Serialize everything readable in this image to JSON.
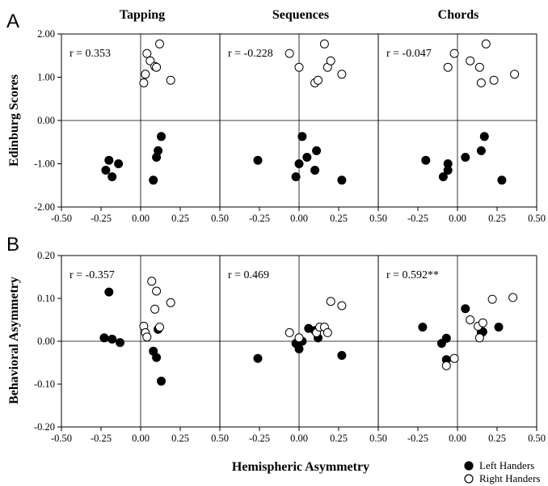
{
  "figure": {
    "column_titles": [
      "Tapping",
      "Sequences",
      "Chords"
    ],
    "panel_letters": [
      "A",
      "B"
    ],
    "ylabels": [
      "Edinburg Scores",
      "Behavioral Asymmetry"
    ],
    "xlabel": "Hemispheric Asymmetry",
    "legend": {
      "left": "Left Handers",
      "right": "Right Handers",
      "left_marker": "filled",
      "right_marker": "open"
    },
    "x_ticks": [
      "-0.50",
      "-0.25",
      "0.00",
      "0.25",
      "0.50"
    ],
    "x_tick_values": [
      -0.5,
      -0.25,
      0.0,
      0.25,
      0.5
    ],
    "rowA_y_ticks": [
      "2.00",
      "1.00",
      "0.00",
      "-1.00",
      "-2.00"
    ],
    "rowA_y_tick_values": [
      2,
      1,
      0,
      -1,
      -2
    ],
    "rowB_y_ticks": [
      "0.20",
      "0.10",
      "0.00",
      "-0.10",
      "-0.20"
    ],
    "rowB_y_tick_values": [
      0.2,
      0.1,
      0.0,
      -0.1,
      -0.2
    ],
    "colors": {
      "marker_fill_left": "#000000",
      "marker_fill_right": "#ffffff",
      "stroke": "#000000"
    }
  },
  "chart_data": [
    {
      "type": "scatter",
      "panel": "A-Tapping",
      "r": "r = 0.353",
      "xlim": [
        -0.5,
        0.5
      ],
      "ylim": [
        -2,
        2
      ],
      "series": [
        {
          "name": "Left Handers",
          "x": [
            -0.22,
            -0.2,
            -0.18,
            -0.14,
            0.08,
            0.1,
            0.11,
            0.13
          ],
          "y": [
            -1.15,
            -0.92,
            -1.3,
            -1.0,
            -1.38,
            -0.85,
            -0.7,
            -0.37
          ]
        },
        {
          "name": "Right Handers",
          "x": [
            0.02,
            0.03,
            0.04,
            0.06,
            0.09,
            0.1,
            0.12,
            0.19
          ],
          "y": [
            0.87,
            1.07,
            1.55,
            1.38,
            1.25,
            1.23,
            1.77,
            0.93
          ]
        }
      ]
    },
    {
      "type": "scatter",
      "panel": "A-Sequences",
      "r": "r = -0.228",
      "xlim": [
        -0.5,
        0.5
      ],
      "ylim": [
        -2,
        2
      ],
      "series": [
        {
          "name": "Left Handers",
          "x": [
            -0.26,
            -0.02,
            0.0,
            0.02,
            0.05,
            0.1,
            0.11,
            0.27
          ],
          "y": [
            -0.92,
            -1.3,
            -1.0,
            -0.37,
            -0.85,
            -1.15,
            -0.7,
            -1.38
          ]
        },
        {
          "name": "Right Handers",
          "x": [
            -0.06,
            0.0,
            0.1,
            0.12,
            0.16,
            0.18,
            0.2,
            0.27
          ],
          "y": [
            1.55,
            1.23,
            0.87,
            0.93,
            1.77,
            1.23,
            1.38,
            1.07
          ]
        }
      ]
    },
    {
      "type": "scatter",
      "panel": "A-Chords",
      "r": "r = -0.047",
      "xlim": [
        -0.5,
        0.5
      ],
      "ylim": [
        -2,
        2
      ],
      "series": [
        {
          "name": "Left Handers",
          "x": [
            -0.2,
            -0.09,
            -0.06,
            -0.06,
            0.05,
            0.15,
            0.17,
            0.28
          ],
          "y": [
            -0.92,
            -1.3,
            -1.0,
            -1.15,
            -0.85,
            -0.7,
            -0.37,
            -1.38
          ]
        },
        {
          "name": "Right Handers",
          "x": [
            -0.06,
            -0.02,
            0.08,
            0.14,
            0.15,
            0.18,
            0.23,
            0.36
          ],
          "y": [
            1.23,
            1.55,
            1.38,
            1.23,
            0.87,
            1.77,
            0.93,
            1.07
          ]
        }
      ]
    },
    {
      "type": "scatter",
      "panel": "B-Tapping",
      "r": "r = -0.357",
      "xlim": [
        -0.5,
        0.5
      ],
      "ylim": [
        -0.2,
        0.2
      ],
      "series": [
        {
          "name": "Left Handers",
          "x": [
            -0.23,
            -0.2,
            -0.18,
            -0.13,
            0.08,
            0.1,
            0.11,
            0.13
          ],
          "y": [
            0.008,
            0.115,
            0.005,
            -0.003,
            -0.023,
            -0.038,
            0.028,
            -0.093
          ]
        },
        {
          "name": "Right Handers",
          "x": [
            0.02,
            0.03,
            0.04,
            0.07,
            0.09,
            0.1,
            0.12,
            0.19
          ],
          "y": [
            0.035,
            0.02,
            0.01,
            0.14,
            0.075,
            0.117,
            0.033,
            0.09
          ]
        }
      ]
    },
    {
      "type": "scatter",
      "panel": "B-Sequences",
      "r": "r = 0.469",
      "xlim": [
        -0.5,
        0.5
      ],
      "ylim": [
        -0.2,
        0.2
      ],
      "series": [
        {
          "name": "Left Handers",
          "x": [
            -0.26,
            -0.02,
            0.0,
            0.02,
            0.06,
            0.1,
            0.12,
            0.27
          ],
          "y": [
            -0.04,
            -0.005,
            -0.018,
            0.0,
            0.03,
            0.025,
            0.008,
            -0.033
          ]
        },
        {
          "name": "Right Handers",
          "x": [
            -0.06,
            0.0,
            0.11,
            0.13,
            0.16,
            0.18,
            0.2,
            0.27
          ],
          "y": [
            0.02,
            0.008,
            0.02,
            0.033,
            0.033,
            0.02,
            0.093,
            0.083
          ]
        }
      ]
    },
    {
      "type": "scatter",
      "panel": "B-Chords",
      "r": "r = 0.592**",
      "xlim": [
        -0.5,
        0.5
      ],
      "ylim": [
        -0.2,
        0.2
      ],
      "series": [
        {
          "name": "Left Handers",
          "x": [
            -0.22,
            -0.1,
            -0.07,
            -0.07,
            0.05,
            0.15,
            0.16,
            0.26
          ],
          "y": [
            0.033,
            -0.005,
            -0.043,
            0.007,
            0.076,
            0.02,
            0.022,
            0.033
          ]
        },
        {
          "name": "Right Handers",
          "x": [
            -0.07,
            -0.02,
            0.08,
            0.13,
            0.14,
            0.16,
            0.22,
            0.35
          ],
          "y": [
            -0.057,
            -0.04,
            0.05,
            0.035,
            0.008,
            0.043,
            0.098,
            0.102
          ]
        }
      ]
    }
  ]
}
